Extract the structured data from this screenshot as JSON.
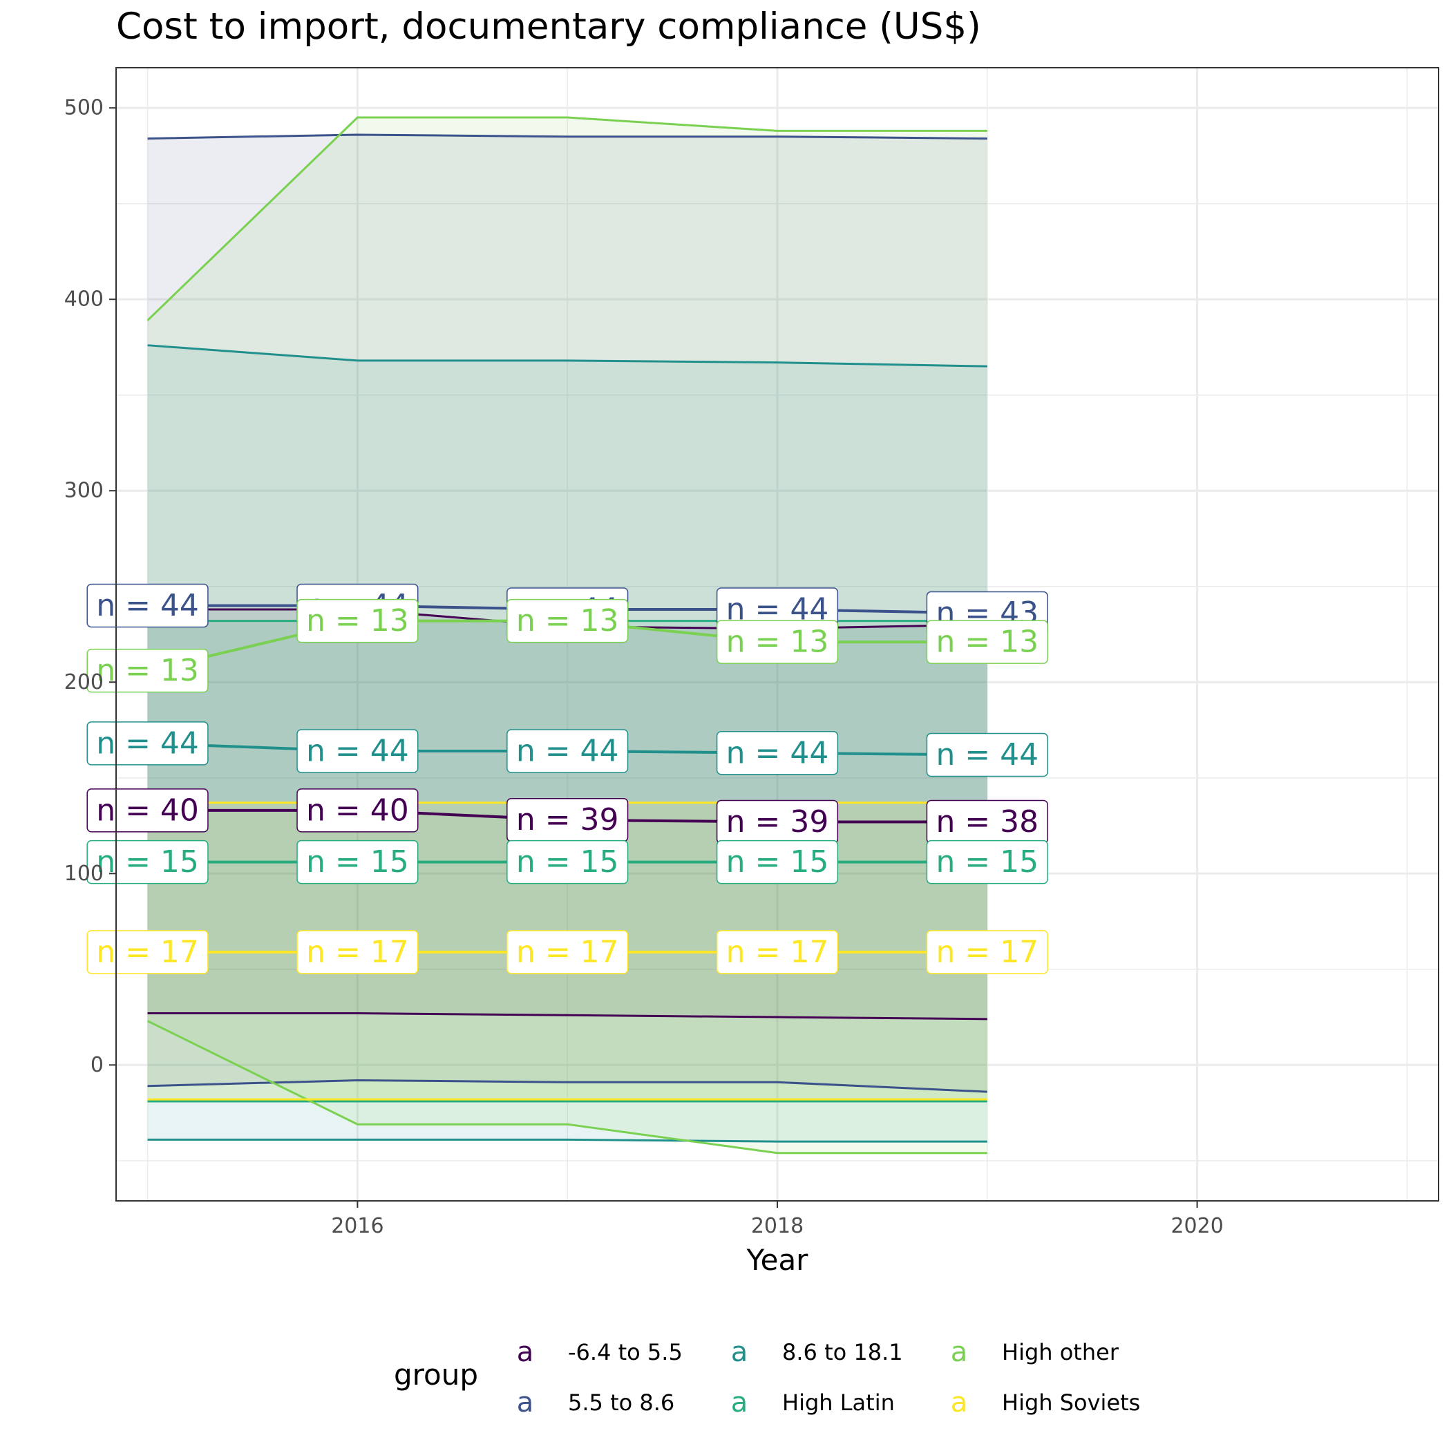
{
  "chart_data": {
    "type": "line",
    "title": "Cost to import, documentary compliance (US$)",
    "xlabel": "Year",
    "ylabel": "",
    "xlim": [
      2014.85,
      2021.15
    ],
    "ylim": [
      -71,
      521
    ],
    "x_ticks": [
      2016,
      2018,
      2020
    ],
    "y_ticks": [
      0,
      100,
      200,
      300,
      400,
      500
    ],
    "grid": true,
    "legend_title": "group",
    "legend_position": "bottom",
    "x": [
      2015,
      2016,
      2017,
      2018,
      2019
    ],
    "series": [
      {
        "name": "-6.4 to 5.5",
        "color": "#440154",
        "mean": [
          133,
          133,
          128,
          127,
          127
        ],
        "upper": [
          238,
          238,
          229,
          228,
          230
        ],
        "lower": [
          27,
          27,
          26,
          25,
          24
        ],
        "n": [
          "n = 40",
          "n = 40",
          "n = 39",
          "n = 39",
          "n = 38"
        ]
      },
      {
        "name": "5.5 to 8.6",
        "color": "#3B528B",
        "mean": [
          240,
          240,
          238,
          238,
          236
        ],
        "upper": [
          484,
          486,
          485,
          485,
          484
        ],
        "lower": [
          -11,
          -8,
          -9,
          -9,
          -14
        ],
        "n": [
          "n = 44",
          "n = 44",
          "n = 44",
          "n = 44",
          "n = 43"
        ]
      },
      {
        "name": "8.6 to 18.1",
        "color": "#21908C",
        "mean": [
          168,
          164,
          164,
          163,
          162
        ],
        "upper": [
          376,
          368,
          368,
          367,
          365
        ],
        "lower": [
          -39,
          -39,
          -39,
          -40,
          -40
        ],
        "n": [
          "n = 44",
          "n = 44",
          "n = 44",
          "n = 44",
          "n = 44"
        ]
      },
      {
        "name": "High Latin",
        "color": "#27AD81",
        "mean": [
          106,
          106,
          106,
          106,
          106
        ],
        "upper": [
          232,
          232,
          232,
          232,
          232
        ],
        "lower": [
          -19,
          -19,
          -19,
          -19,
          -19
        ],
        "n": [
          "n = 15",
          "n = 15",
          "n = 15",
          "n = 15",
          "n = 15"
        ]
      },
      {
        "name": "High other",
        "color": "#7AD151",
        "mean": [
          206,
          232,
          232,
          221,
          221
        ],
        "upper": [
          389,
          495,
          495,
          488,
          488
        ],
        "lower": [
          23,
          -31,
          -31,
          -46,
          -46
        ],
        "n": [
          "n = 13",
          "n = 13",
          "n = 13",
          "n = 13",
          "n = 13"
        ]
      },
      {
        "name": "High Soviets",
        "color": "#FDE725",
        "mean": [
          59,
          59,
          59,
          59,
          59
        ],
        "upper": [
          137,
          137,
          137,
          137,
          137
        ],
        "lower": [
          -18,
          -18,
          -18,
          -18,
          -18
        ],
        "n": [
          "n = 17",
          "n = 17",
          "n = 17",
          "n = 17",
          "n = 17"
        ]
      }
    ]
  }
}
